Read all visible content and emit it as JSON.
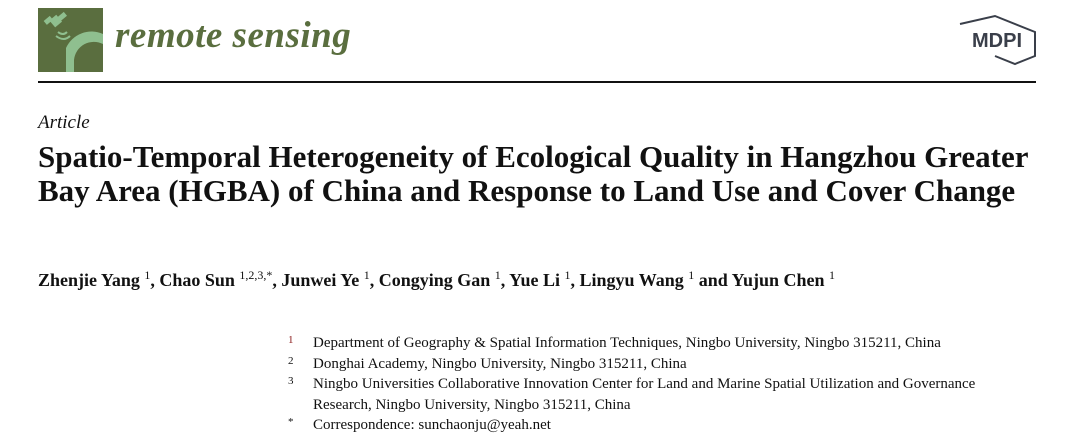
{
  "header": {
    "journal_name": "remote sensing",
    "publisher_logo": "MDPI",
    "brand_color": "#5a6e3f"
  },
  "article": {
    "type": "Article",
    "title": "Spatio-Temporal Heterogeneity of Ecological Quality in Hangzhou Greater Bay Area (HGBA) of China and Response to Land Use and Cover Change",
    "authors": [
      {
        "name": "Zhenjie Yang",
        "aff": "1",
        "sep": ", "
      },
      {
        "name": "Chao Sun",
        "aff": "1,2,3,*",
        "sep": ", "
      },
      {
        "name": "Junwei Ye",
        "aff": "1",
        "sep": ", "
      },
      {
        "name": "Congying Gan",
        "aff": "1",
        "sep": ", "
      },
      {
        "name": "Yue Li",
        "aff": "1",
        "sep": ", "
      },
      {
        "name": "Lingyu Wang",
        "aff": "1",
        "sep": " and "
      },
      {
        "name": "Yujun Chen",
        "aff": "1",
        "sep": ""
      }
    ],
    "affiliations": [
      {
        "marker": "1",
        "text": "Department of Geography & Spatial Information Techniques, Ningbo University, Ningbo 315211, China"
      },
      {
        "marker": "2",
        "text": "Donghai Academy, Ningbo University, Ningbo 315211, China"
      },
      {
        "marker": "3",
        "text": "Ningbo Universities Collaborative Innovation Center for Land and Marine Spatial Utilization and Governance Research, Ningbo University, Ningbo 315211, China"
      },
      {
        "marker": "*",
        "text": "Correspondence: sunchaonju@yeah.net"
      }
    ]
  }
}
